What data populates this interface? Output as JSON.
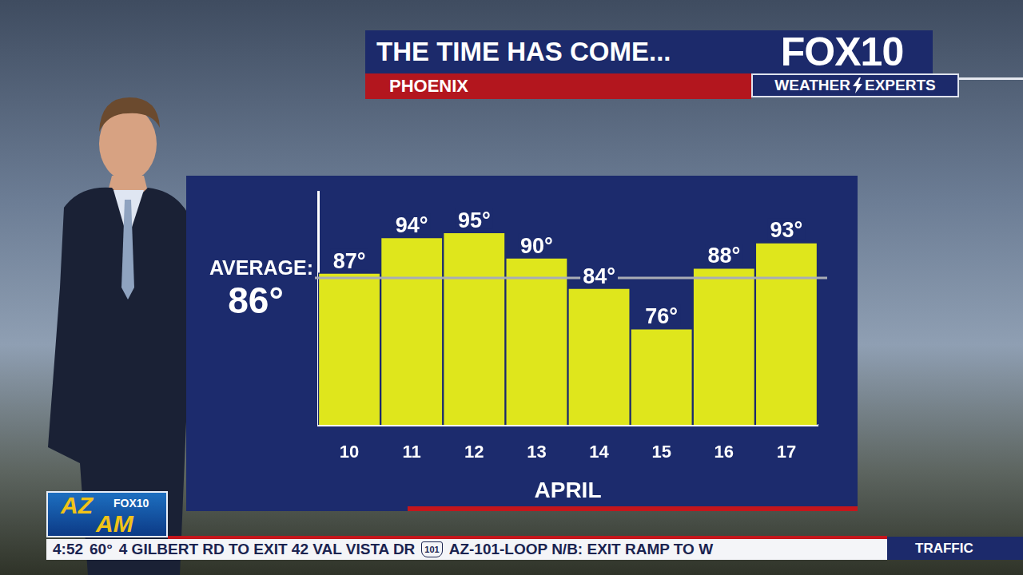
{
  "header": {
    "title": "THE TIME HAS COME...",
    "location": "PHOENIX",
    "logo": "FOX10",
    "logo_tagline": [
      "WEATHER",
      "EXPERTS"
    ]
  },
  "chart_data": {
    "type": "bar",
    "categories": [
      "10",
      "11",
      "12",
      "13",
      "14",
      "15",
      "16",
      "17"
    ],
    "x_label": "APRIL",
    "values": [
      87,
      94,
      95,
      90,
      84,
      76,
      88,
      93
    ],
    "value_labels": [
      "87°",
      "94°",
      "95°",
      "90°",
      "84°",
      "76°",
      "88°",
      "93°"
    ],
    "color": "#dfe61c",
    "ylim": [
      57,
      103
    ],
    "yticks": [],
    "grid": false,
    "data_labels": true,
    "tick_labels": "x",
    "reference_line": {
      "label": "AVERAGE:",
      "value": 86,
      "value_label": "86°"
    }
  },
  "footer": {
    "show_logo": [
      "AZ",
      "AM",
      "FOX10"
    ],
    "time": "4:52",
    "temperature": "60°",
    "ticker": [
      "4 GILBERT RD TO EXIT 42 VAL VISTA DR",
      "101",
      "AZ-101-LOOP N/B: EXIT RAMP TO W"
    ],
    "section": "TRAFFIC"
  }
}
